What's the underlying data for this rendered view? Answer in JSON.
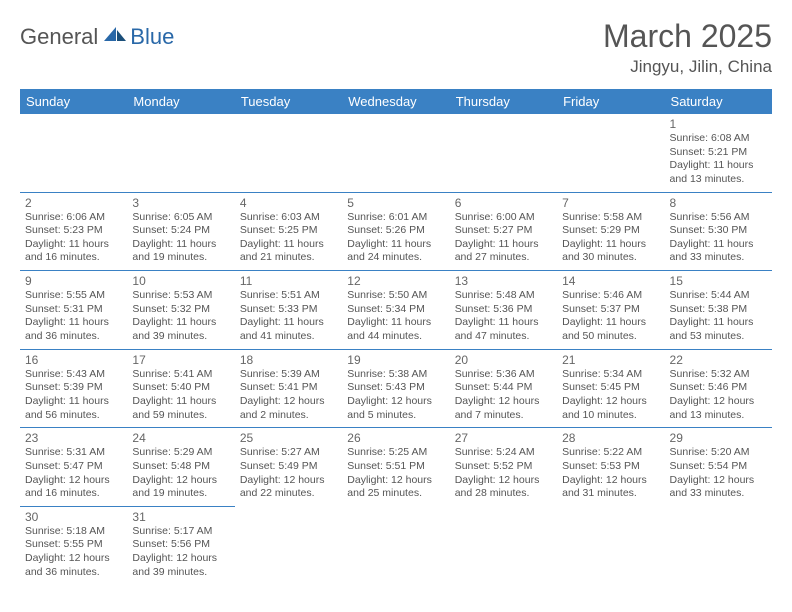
{
  "logo": {
    "text_general": "General",
    "text_blue": "Blue",
    "sail_color": "#2968a8",
    "sail_dark": "#1b4f7a"
  },
  "header": {
    "month_title": "March 2025",
    "location": "Jingyu, Jilin, China"
  },
  "colors": {
    "header_bg": "#3a81c4",
    "header_text": "#ffffff",
    "border": "#3a81c4",
    "text_main": "#555555",
    "text_day": "#666666"
  },
  "weekdays": [
    "Sunday",
    "Monday",
    "Tuesday",
    "Wednesday",
    "Thursday",
    "Friday",
    "Saturday"
  ],
  "weeks": [
    [
      null,
      null,
      null,
      null,
      null,
      null,
      {
        "day": "1",
        "sunrise": "Sunrise: 6:08 AM",
        "sunset": "Sunset: 5:21 PM",
        "daylight": "Daylight: 11 hours and 13 minutes."
      }
    ],
    [
      {
        "day": "2",
        "sunrise": "Sunrise: 6:06 AM",
        "sunset": "Sunset: 5:23 PM",
        "daylight": "Daylight: 11 hours and 16 minutes."
      },
      {
        "day": "3",
        "sunrise": "Sunrise: 6:05 AM",
        "sunset": "Sunset: 5:24 PM",
        "daylight": "Daylight: 11 hours and 19 minutes."
      },
      {
        "day": "4",
        "sunrise": "Sunrise: 6:03 AM",
        "sunset": "Sunset: 5:25 PM",
        "daylight": "Daylight: 11 hours and 21 minutes."
      },
      {
        "day": "5",
        "sunrise": "Sunrise: 6:01 AM",
        "sunset": "Sunset: 5:26 PM",
        "daylight": "Daylight: 11 hours and 24 minutes."
      },
      {
        "day": "6",
        "sunrise": "Sunrise: 6:00 AM",
        "sunset": "Sunset: 5:27 PM",
        "daylight": "Daylight: 11 hours and 27 minutes."
      },
      {
        "day": "7",
        "sunrise": "Sunrise: 5:58 AM",
        "sunset": "Sunset: 5:29 PM",
        "daylight": "Daylight: 11 hours and 30 minutes."
      },
      {
        "day": "8",
        "sunrise": "Sunrise: 5:56 AM",
        "sunset": "Sunset: 5:30 PM",
        "daylight": "Daylight: 11 hours and 33 minutes."
      }
    ],
    [
      {
        "day": "9",
        "sunrise": "Sunrise: 5:55 AM",
        "sunset": "Sunset: 5:31 PM",
        "daylight": "Daylight: 11 hours and 36 minutes."
      },
      {
        "day": "10",
        "sunrise": "Sunrise: 5:53 AM",
        "sunset": "Sunset: 5:32 PM",
        "daylight": "Daylight: 11 hours and 39 minutes."
      },
      {
        "day": "11",
        "sunrise": "Sunrise: 5:51 AM",
        "sunset": "Sunset: 5:33 PM",
        "daylight": "Daylight: 11 hours and 41 minutes."
      },
      {
        "day": "12",
        "sunrise": "Sunrise: 5:50 AM",
        "sunset": "Sunset: 5:34 PM",
        "daylight": "Daylight: 11 hours and 44 minutes."
      },
      {
        "day": "13",
        "sunrise": "Sunrise: 5:48 AM",
        "sunset": "Sunset: 5:36 PM",
        "daylight": "Daylight: 11 hours and 47 minutes."
      },
      {
        "day": "14",
        "sunrise": "Sunrise: 5:46 AM",
        "sunset": "Sunset: 5:37 PM",
        "daylight": "Daylight: 11 hours and 50 minutes."
      },
      {
        "day": "15",
        "sunrise": "Sunrise: 5:44 AM",
        "sunset": "Sunset: 5:38 PM",
        "daylight": "Daylight: 11 hours and 53 minutes."
      }
    ],
    [
      {
        "day": "16",
        "sunrise": "Sunrise: 5:43 AM",
        "sunset": "Sunset: 5:39 PM",
        "daylight": "Daylight: 11 hours and 56 minutes."
      },
      {
        "day": "17",
        "sunrise": "Sunrise: 5:41 AM",
        "sunset": "Sunset: 5:40 PM",
        "daylight": "Daylight: 11 hours and 59 minutes."
      },
      {
        "day": "18",
        "sunrise": "Sunrise: 5:39 AM",
        "sunset": "Sunset: 5:41 PM",
        "daylight": "Daylight: 12 hours and 2 minutes."
      },
      {
        "day": "19",
        "sunrise": "Sunrise: 5:38 AM",
        "sunset": "Sunset: 5:43 PM",
        "daylight": "Daylight: 12 hours and 5 minutes."
      },
      {
        "day": "20",
        "sunrise": "Sunrise: 5:36 AM",
        "sunset": "Sunset: 5:44 PM",
        "daylight": "Daylight: 12 hours and 7 minutes."
      },
      {
        "day": "21",
        "sunrise": "Sunrise: 5:34 AM",
        "sunset": "Sunset: 5:45 PM",
        "daylight": "Daylight: 12 hours and 10 minutes."
      },
      {
        "day": "22",
        "sunrise": "Sunrise: 5:32 AM",
        "sunset": "Sunset: 5:46 PM",
        "daylight": "Daylight: 12 hours and 13 minutes."
      }
    ],
    [
      {
        "day": "23",
        "sunrise": "Sunrise: 5:31 AM",
        "sunset": "Sunset: 5:47 PM",
        "daylight": "Daylight: 12 hours and 16 minutes."
      },
      {
        "day": "24",
        "sunrise": "Sunrise: 5:29 AM",
        "sunset": "Sunset: 5:48 PM",
        "daylight": "Daylight: 12 hours and 19 minutes."
      },
      {
        "day": "25",
        "sunrise": "Sunrise: 5:27 AM",
        "sunset": "Sunset: 5:49 PM",
        "daylight": "Daylight: 12 hours and 22 minutes."
      },
      {
        "day": "26",
        "sunrise": "Sunrise: 5:25 AM",
        "sunset": "Sunset: 5:51 PM",
        "daylight": "Daylight: 12 hours and 25 minutes."
      },
      {
        "day": "27",
        "sunrise": "Sunrise: 5:24 AM",
        "sunset": "Sunset: 5:52 PM",
        "daylight": "Daylight: 12 hours and 28 minutes."
      },
      {
        "day": "28",
        "sunrise": "Sunrise: 5:22 AM",
        "sunset": "Sunset: 5:53 PM",
        "daylight": "Daylight: 12 hours and 31 minutes."
      },
      {
        "day": "29",
        "sunrise": "Sunrise: 5:20 AM",
        "sunset": "Sunset: 5:54 PM",
        "daylight": "Daylight: 12 hours and 33 minutes."
      }
    ],
    [
      {
        "day": "30",
        "sunrise": "Sunrise: 5:18 AM",
        "sunset": "Sunset: 5:55 PM",
        "daylight": "Daylight: 12 hours and 36 minutes."
      },
      {
        "day": "31",
        "sunrise": "Sunrise: 5:17 AM",
        "sunset": "Sunset: 5:56 PM",
        "daylight": "Daylight: 12 hours and 39 minutes."
      },
      null,
      null,
      null,
      null,
      null
    ]
  ]
}
